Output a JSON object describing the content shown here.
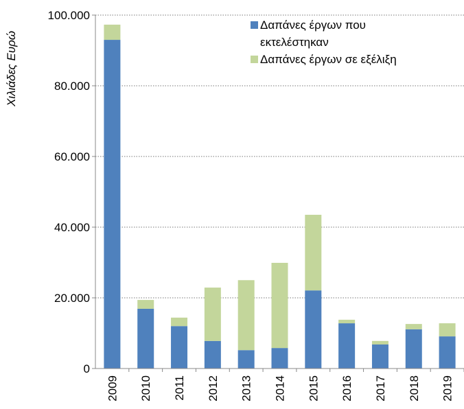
{
  "chart_data": {
    "type": "stacked-bar",
    "y_label": "Χιλιάδες Ευρώ",
    "categories": [
      "2009",
      "2010",
      "2011",
      "2012",
      "2013",
      "2014",
      "2015",
      "2016",
      "2017",
      "2018",
      "2019"
    ],
    "series": [
      {
        "name": "Δαπάνες έργων που εκτελέστηκαν",
        "color": "#4f81bd",
        "values": [
          93000,
          16900,
          12000,
          7800,
          5200,
          5800,
          22100,
          12800,
          6800,
          11100,
          9100
        ]
      },
      {
        "name": "Δαπάνες έργων σε εξέλιξη",
        "color": "#c3d69b",
        "values": [
          4300,
          2500,
          2400,
          15100,
          19800,
          24100,
          21400,
          1000,
          1000,
          1500,
          3700
        ]
      }
    ],
    "ylim": [
      0,
      100000
    ],
    "yticks": [
      0,
      {
        "value": 20000,
        "label": "20.000"
      },
      {
        "value": 40000,
        "label": "40.000"
      },
      {
        "value": 60000,
        "label": "60.000"
      },
      {
        "value": 80000,
        "label": "80.000"
      },
      {
        "value": 100000,
        "label": "100.000"
      }
    ],
    "grid": true
  }
}
